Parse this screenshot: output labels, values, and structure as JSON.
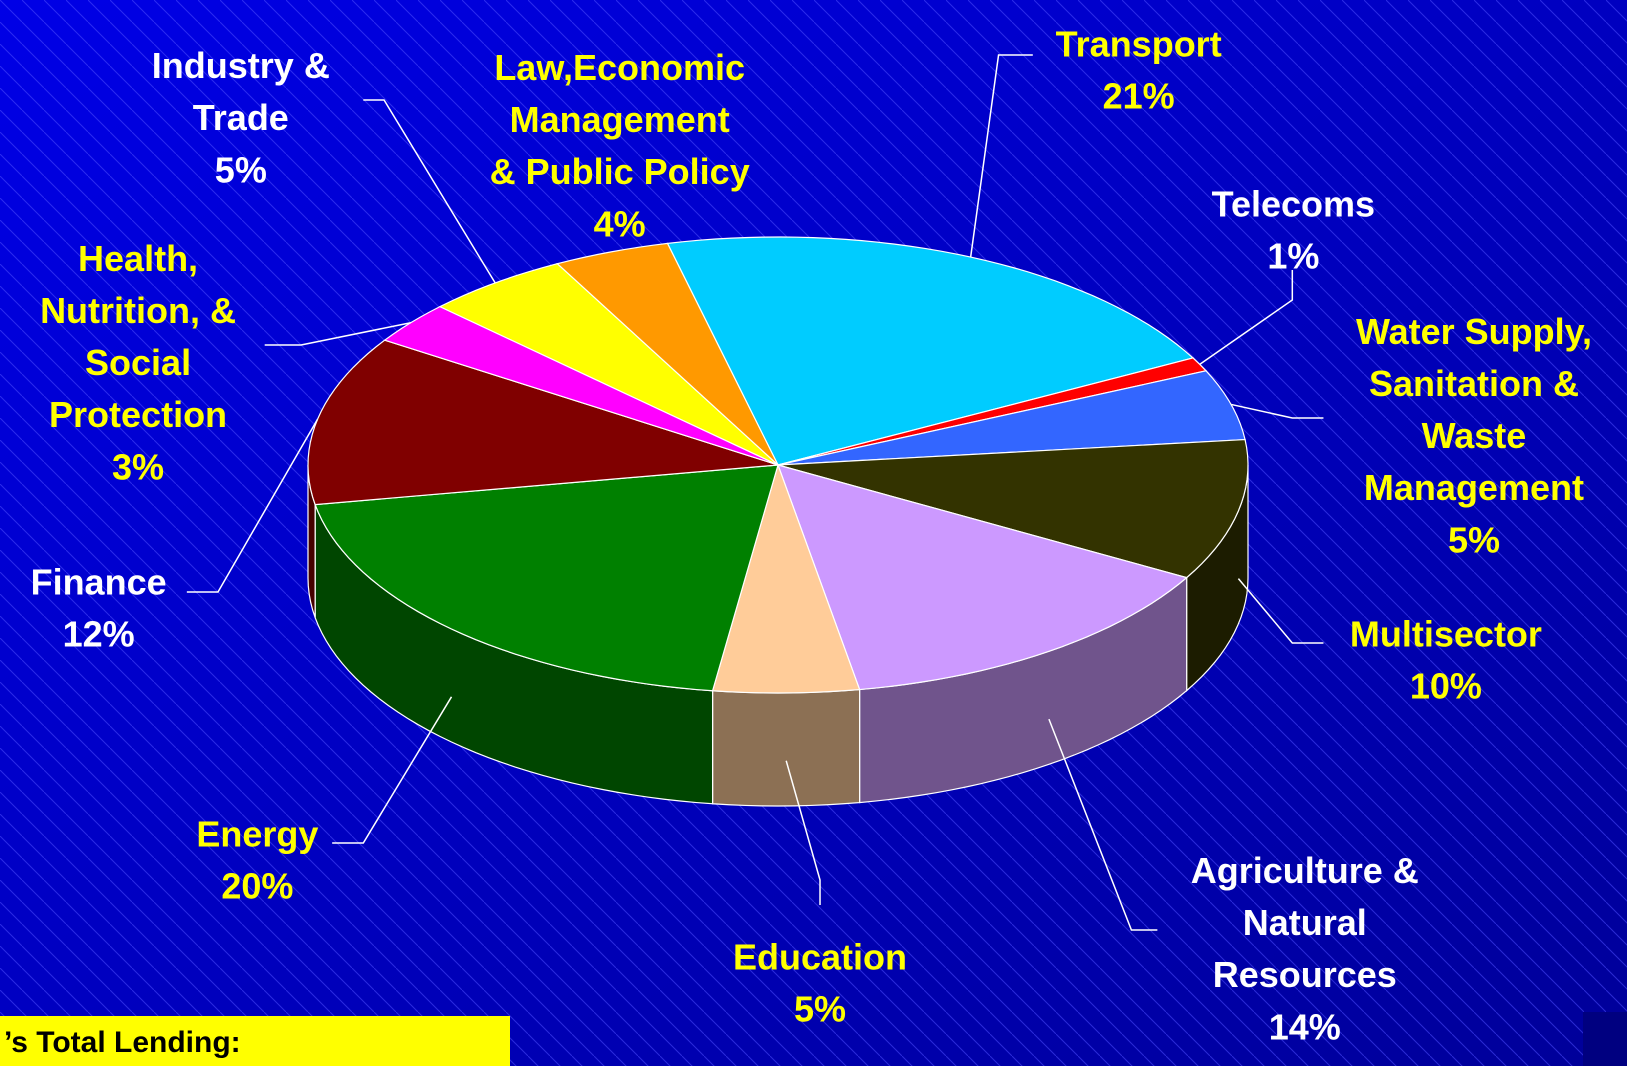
{
  "chart_data": {
    "type": "pie3d",
    "categories": [
      "Transport",
      "Telecoms",
      "Water Supply,\nSanitation &\nWaste\nManagement",
      "Multisector",
      "Agriculture &\nNatural\nResources",
      "Education",
      "Energy",
      "Finance",
      "Health,\nNutrition, &\nSocial\nProtection",
      "Industry &\nTrade",
      "Law,Economic\nManagement\n& Public Policy"
    ],
    "values": [
      21,
      1,
      5,
      10,
      14,
      5,
      20,
      12,
      3,
      5,
      4
    ],
    "value_labels": [
      "21%",
      "1%",
      "5%",
      "10%",
      "14%",
      "5%",
      "20%",
      "12%",
      "3%",
      "5%",
      "4%"
    ],
    "colors": [
      "#00ccff",
      "#ff0000",
      "#3366ff",
      "#333300",
      "#cc99ff",
      "#ffcc99",
      "#008000",
      "#800000",
      "#ff00ff",
      "#ffff00",
      "#ff9900"
    ],
    "label_colors": [
      "#ffff00",
      "#ffffff",
      "#ffff00",
      "#ffff00",
      "#ffffff",
      "#ffff00",
      "#ffff00",
      "#ffffff",
      "#ffff00",
      "#ffffff",
      "#ffff00"
    ],
    "footnote": "’s Total Lending:"
  }
}
